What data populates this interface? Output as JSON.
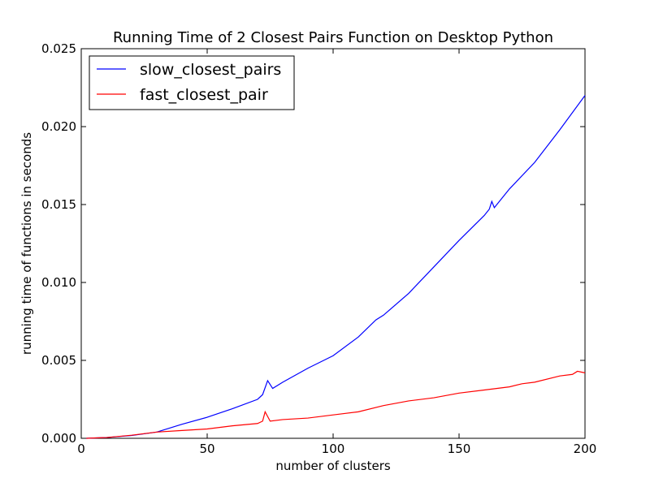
{
  "chart_data": {
    "type": "line",
    "title": "Running Time of 2 Closest Pairs Function on Desktop Python",
    "xlabel": "number of clusters",
    "ylabel": "running time of functions in seconds",
    "xlim": [
      0,
      200
    ],
    "ylim": [
      0,
      0.025
    ],
    "x_ticks": [
      0,
      50,
      100,
      150,
      200
    ],
    "x_tick_labels": [
      "0",
      "50",
      "100",
      "150",
      "200"
    ],
    "y_ticks": [
      0,
      0.005,
      0.01,
      0.015,
      0.02,
      0.025
    ],
    "y_tick_labels": [
      "0.000",
      "0.005",
      "0.010",
      "0.015",
      "0.020",
      "0.025"
    ],
    "grid": false,
    "legend_position": "top-left",
    "series": [
      {
        "name": "slow_closest_pairs",
        "color": "#0000ff",
        "points": [
          [
            2,
            0.0
          ],
          [
            10,
            5e-05
          ],
          [
            20,
            0.00018
          ],
          [
            30,
            0.0004
          ],
          [
            40,
            0.0009
          ],
          [
            50,
            0.00135
          ],
          [
            60,
            0.0019
          ],
          [
            70,
            0.0025
          ],
          [
            72,
            0.0028
          ],
          [
            74,
            0.0037
          ],
          [
            76,
            0.0032
          ],
          [
            80,
            0.0036
          ],
          [
            90,
            0.0045
          ],
          [
            100,
            0.0053
          ],
          [
            110,
            0.0065
          ],
          [
            117,
            0.0076
          ],
          [
            120,
            0.0079
          ],
          [
            130,
            0.0093
          ],
          [
            140,
            0.011
          ],
          [
            150,
            0.0127
          ],
          [
            160,
            0.0143
          ],
          [
            162,
            0.0147
          ],
          [
            163,
            0.0152
          ],
          [
            164,
            0.0148
          ],
          [
            170,
            0.016
          ],
          [
            180,
            0.0177
          ],
          [
            190,
            0.0198
          ],
          [
            200,
            0.022
          ]
        ]
      },
      {
        "name": "fast_closest_pair",
        "color": "#ff0000",
        "points": [
          [
            2,
            0.0
          ],
          [
            10,
            5e-05
          ],
          [
            20,
            0.0002
          ],
          [
            30,
            0.0004
          ],
          [
            40,
            0.0005
          ],
          [
            50,
            0.0006
          ],
          [
            60,
            0.0008
          ],
          [
            70,
            0.00095
          ],
          [
            72,
            0.0011
          ],
          [
            73,
            0.0017
          ],
          [
            75,
            0.0011
          ],
          [
            80,
            0.0012
          ],
          [
            90,
            0.0013
          ],
          [
            100,
            0.0015
          ],
          [
            110,
            0.0017
          ],
          [
            120,
            0.0021
          ],
          [
            130,
            0.0024
          ],
          [
            140,
            0.0026
          ],
          [
            150,
            0.0029
          ],
          [
            160,
            0.0031
          ],
          [
            170,
            0.0033
          ],
          [
            175,
            0.0035
          ],
          [
            180,
            0.0036
          ],
          [
            190,
            0.004
          ],
          [
            195,
            0.0041
          ],
          [
            197,
            0.0043
          ],
          [
            200,
            0.0042
          ]
        ]
      }
    ]
  }
}
